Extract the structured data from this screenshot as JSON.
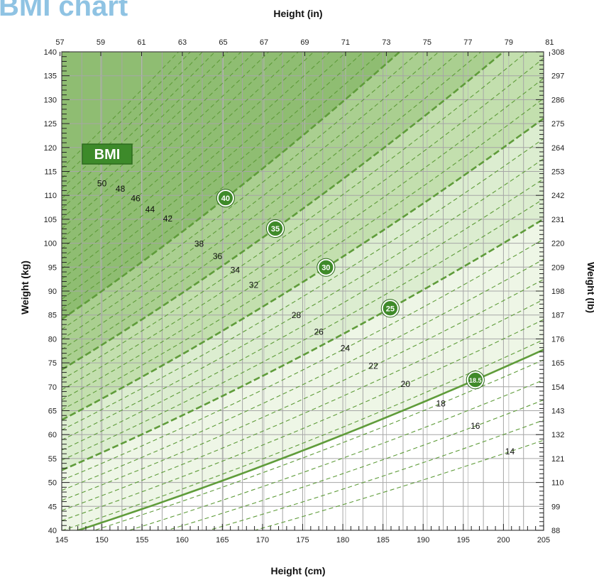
{
  "page": {
    "title": "BMI chart"
  },
  "chart_data": {
    "type": "line",
    "x_bottom": {
      "label": "Height (cm)",
      "range": [
        145,
        205
      ],
      "ticks": [
        145,
        150,
        155,
        160,
        165,
        170,
        175,
        180,
        185,
        190,
        195,
        200,
        205
      ]
    },
    "x_top": {
      "label": "Height (in)",
      "ticks": [
        57,
        59,
        61,
        63,
        65,
        67,
        69,
        71,
        73,
        75,
        77,
        79,
        81
      ]
    },
    "y_left": {
      "label": "Weight (kg)",
      "range": [
        40,
        140
      ],
      "ticks": [
        40,
        45,
        50,
        55,
        60,
        65,
        70,
        75,
        80,
        85,
        90,
        95,
        100,
        105,
        110,
        115,
        120,
        125,
        130,
        135,
        140
      ]
    },
    "y_right": {
      "label": "Weight (lb)",
      "ticks": [
        88,
        99,
        110,
        121,
        132,
        143,
        154,
        165,
        176,
        187,
        198,
        209,
        220,
        231,
        242,
        253,
        264,
        275,
        286,
        297,
        308
      ]
    },
    "legend_label": "BMI",
    "bmi_lines": [
      14,
      15,
      16,
      17,
      18,
      18.5,
      19,
      20,
      21,
      22,
      23,
      24,
      25,
      26,
      27,
      28,
      29,
      30,
      31,
      32,
      33,
      34,
      35,
      36,
      37,
      38,
      39,
      40,
      41,
      42,
      43,
      44,
      45,
      46,
      47,
      48,
      49,
      50,
      51,
      52,
      53,
      54,
      55
    ],
    "major_lines": [
      18.5,
      25,
      30,
      35,
      40
    ],
    "bmi_labels": [
      {
        "bmi": 50,
        "text": "50",
        "height_cm": 150.0
      },
      {
        "bmi": 48,
        "text": "48",
        "height_cm": 152.3
      },
      {
        "bmi": 46,
        "text": "46",
        "height_cm": 154.2
      },
      {
        "bmi": 44,
        "text": "44",
        "height_cm": 156.0
      },
      {
        "bmi": 42,
        "text": "42",
        "height_cm": 158.2
      },
      {
        "bmi": 38,
        "text": "38",
        "height_cm": 162.1
      },
      {
        "bmi": 36,
        "text": "36",
        "height_cm": 164.4
      },
      {
        "bmi": 34,
        "text": "34",
        "height_cm": 166.6
      },
      {
        "bmi": 32,
        "text": "32",
        "height_cm": 168.9
      },
      {
        "bmi": 28,
        "text": "28",
        "height_cm": 174.2
      },
      {
        "bmi": 26,
        "text": "26",
        "height_cm": 177.0
      },
      {
        "bmi": 24,
        "text": "24",
        "height_cm": 180.3
      },
      {
        "bmi": 22,
        "text": "22",
        "height_cm": 183.8
      },
      {
        "bmi": 20,
        "text": "20",
        "height_cm": 187.8
      },
      {
        "bmi": 18,
        "text": "18",
        "height_cm": 192.2
      },
      {
        "bmi": 16,
        "text": "16",
        "height_cm": 196.5
      },
      {
        "bmi": 14,
        "text": "14",
        "height_cm": 200.8
      }
    ],
    "badges": [
      {
        "bmi": 40,
        "text": "40",
        "height_cm": 165.4
      },
      {
        "bmi": 35,
        "text": "35",
        "height_cm": 171.6
      },
      {
        "bmi": 30,
        "text": "30",
        "height_cm": 177.9
      },
      {
        "bmi": 25,
        "text": "25",
        "height_cm": 185.9
      },
      {
        "bmi": 18.5,
        "text": "18.5",
        "height_cm": 196.5
      }
    ],
    "zone_colors": [
      "#ffffff",
      "#eef6e6",
      "#dcedd0",
      "#c3dfae",
      "#aacf90",
      "#8fbd72"
    ],
    "line_color": "#5f9c3a",
    "grid_color": "#a6a6a6"
  }
}
